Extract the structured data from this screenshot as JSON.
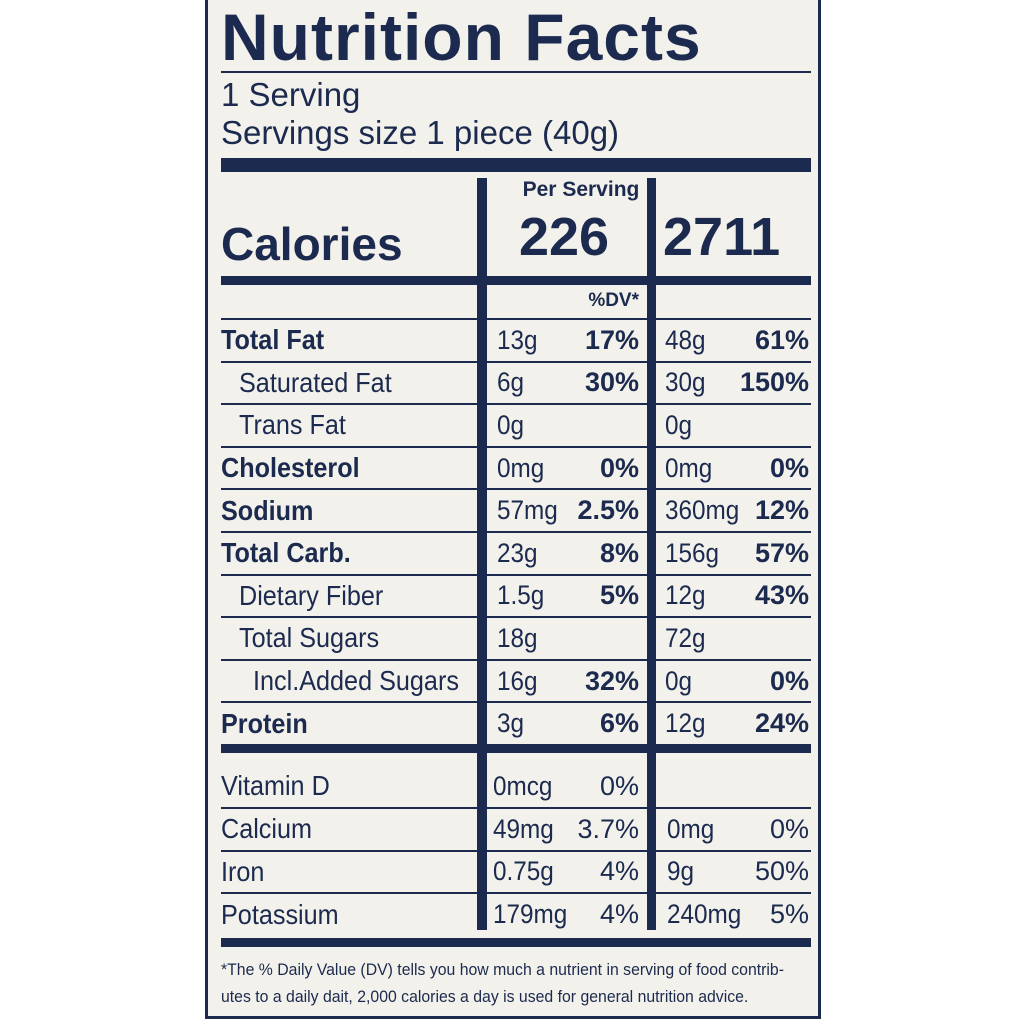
{
  "header": {
    "title": "Nutrition Facts",
    "servings": "1 Serving",
    "serving_size": "Servings size 1 piece (40g)"
  },
  "calories": {
    "column_header": "Per Serving",
    "label": "Calories",
    "per_serving": "226",
    "total": "2711"
  },
  "dv_header": "%DV*",
  "nutrients": [
    [
      "Total Fat",
      "13g",
      "17%",
      "48g",
      "61%"
    ],
    [
      "Saturated Fat",
      "6g",
      "30%",
      "30g",
      "150%"
    ],
    [
      "Trans Fat",
      "0g",
      null,
      "0g",
      null
    ],
    [
      "Cholesterol",
      "0mg",
      "0%",
      "0mg",
      "0%"
    ],
    [
      "Sodium",
      "57mg",
      "2.5%",
      "360mg",
      "12%"
    ],
    [
      "Total Carb.",
      "23g",
      "8%",
      "156g",
      "57%"
    ],
    [
      "Dietary Fiber",
      "1.5g",
      "5%",
      "12g",
      "43%"
    ],
    [
      "Total Sugars",
      "18g",
      null,
      "72g",
      null
    ],
    [
      "Incl.Added Sugars",
      "16g",
      "32%",
      "0g",
      "0%"
    ],
    [
      "Protein",
      "3g",
      "6%",
      "12g",
      "24%"
    ]
  ],
  "vitamins": [
    [
      "Vitamin D",
      "0mcg",
      "0%",
      null,
      null
    ],
    [
      "Calcium",
      "49mg",
      "3.7%",
      "0mg",
      "0%"
    ],
    [
      "Iron",
      "0.75g",
      "4%",
      "9g",
      "50%"
    ],
    [
      "Potassium",
      "179mg",
      "4%",
      "240mg",
      "5%"
    ]
  ],
  "footnote": [
    "*The % Daily Value (DV) tells you how much a nutrient in serving of food contrib-",
    "utes to a daily dait, 2,000 calories a day is used for general nutrition advice."
  ]
}
